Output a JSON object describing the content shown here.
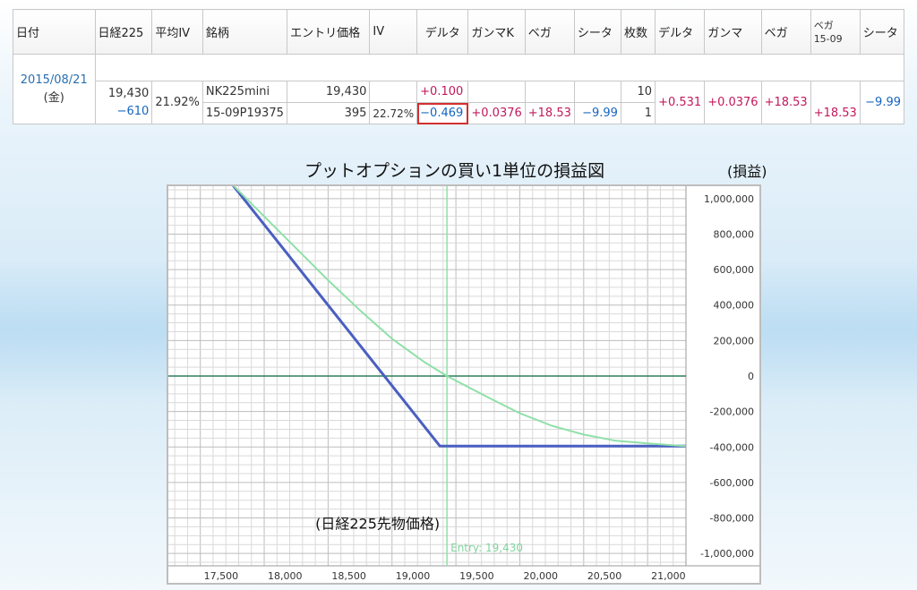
{
  "table": {
    "headers": [
      "日付",
      "日経225",
      "平均IV",
      "銘柄",
      "エントリ価格",
      "IV",
      "デルタ",
      "ガンマK",
      "ベガ",
      "シータ",
      "枚数",
      "デルタ",
      "ガンマ",
      "ベガ",
      "シータ"
    ],
    "vega_header": {
      "label": "ベガ",
      "sub": "15-09"
    },
    "date": "2015/08/21",
    "weekday": "(金)",
    "nikkei_price": "19,430",
    "nikkei_change": "−610",
    "avg_iv": "21.92%",
    "rows": [
      {
        "symbol": "NK225mini",
        "entry": "19,430",
        "iv": "",
        "delta": "+0.100",
        "gamma_k": "",
        "vega": "",
        "theta": "",
        "qty": "10"
      },
      {
        "symbol": "15-09P19375",
        "entry": "395",
        "iv": "22.72%",
        "delta": "−0.469",
        "gamma_k": "+0.0376",
        "vega": "+18.53",
        "theta": "−9.99",
        "qty": "1"
      }
    ],
    "totals": {
      "delta": "+0.531",
      "gamma": "+0.0376",
      "vega": "+18.53",
      "vega_1509": "+18.53",
      "theta": "−9.99"
    }
  },
  "chart_data": {
    "type": "line",
    "title": "プットオプションの買い1単位の損益図",
    "ylabel": "(損益)",
    "xlabel": "(日経225先物価格)",
    "xlim": [
      17250,
      21300
    ],
    "ylim": [
      -1070000,
      1070000
    ],
    "x_ticks": [
      17500,
      18000,
      18500,
      19000,
      19500,
      20000,
      20500,
      21000
    ],
    "x_tick_labels": [
      "17,500",
      "18,000",
      "18,500",
      "19,000",
      "19,500",
      "20,000",
      "20,500",
      "21,000"
    ],
    "y_ticks": [
      1000000,
      800000,
      600000,
      400000,
      200000,
      0,
      -200000,
      -400000,
      -600000,
      -800000,
      -1000000
    ],
    "y_tick_labels": [
      "1,000,000",
      "800,000",
      "600,000",
      "400,000",
      "200,000",
      "0",
      "-200,000",
      "-400,000",
      "-600,000",
      "-800,000",
      "-1,000,000"
    ],
    "entry_x": 19430,
    "entry_label": "Entry: 19,430",
    "series": [
      {
        "type": "expiry",
        "color": "#4a5fc1",
        "x": [
          17750,
          19375,
          21300
        ],
        "y": [
          1080000,
          -395000,
          -395000
        ]
      },
      {
        "type": "current",
        "color": "#8fe0a8",
        "x": [
          17750,
          18000,
          18250,
          18500,
          18750,
          19000,
          19250,
          19430,
          19750,
          20000,
          20250,
          20500,
          20750,
          21000,
          21300
        ],
        "y": [
          1080000,
          900000,
          720000,
          540000,
          370000,
          210000,
          80000,
          0,
          -120000,
          -210000,
          -280000,
          -330000,
          -365000,
          -380000,
          -395000
        ]
      }
    ],
    "grid": true,
    "colors": {
      "zero_line": "#2e7d5b",
      "entry_line": "#8fe0a8",
      "grid": "#d9d9d9",
      "grid_major": "#bdbdbd"
    }
  }
}
